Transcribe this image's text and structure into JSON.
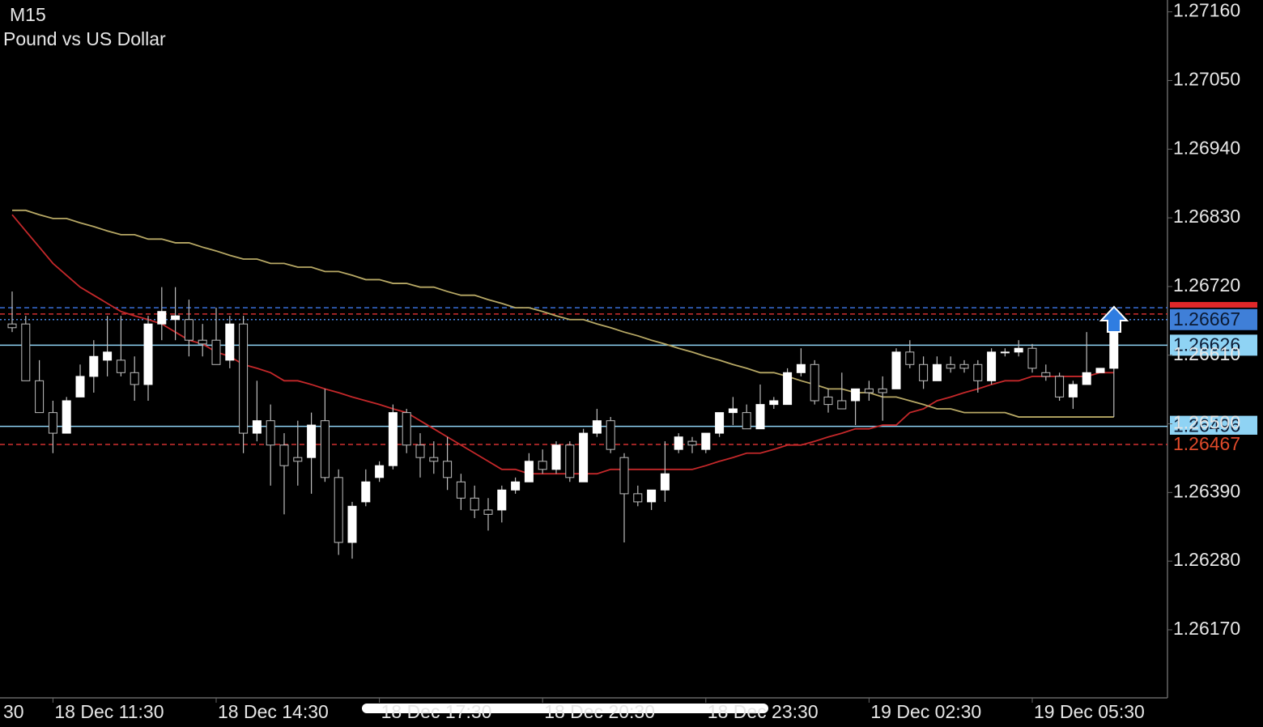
{
  "chart_data": {
    "type": "candlestick",
    "title": "M15",
    "subtitle": "Pound vs US Dollar",
    "x_label_cut": "30",
    "categories": [
      null,
      null,
      null,
      "18 Dec 11:30",
      null,
      null,
      null,
      null,
      null,
      null,
      null,
      null,
      null,
      null,
      null,
      "18 Dec 14:30",
      null,
      null,
      null,
      null,
      null,
      null,
      null,
      null,
      null,
      null,
      null,
      "18 Dec 17:30",
      null,
      null,
      null,
      null,
      null,
      null,
      null,
      null,
      null,
      null,
      null,
      "18 Dec 20:30",
      null,
      null,
      null,
      null,
      null,
      null,
      null,
      null,
      null,
      null,
      null,
      "18 Dec 23:30",
      null,
      null,
      null,
      null,
      null,
      null,
      null,
      null,
      null,
      null,
      null,
      "19 Dec 02:30",
      null,
      null,
      null,
      null,
      null,
      null,
      null,
      null,
      null,
      null,
      null,
      "19 Dec 05:30",
      null,
      null,
      null,
      null,
      null,
      null
    ],
    "open": [
      1.2666,
      1.2666,
      1.26569,
      1.26518,
      1.26485,
      1.26543,
      1.26576,
      1.26602,
      1.26602,
      1.26582,
      1.26563,
      1.2666,
      1.26667,
      1.26667,
      1.26634,
      1.26634,
      1.26602,
      1.2666,
      1.26485,
      1.26505,
      1.26466,
      1.26446,
      1.26446,
      1.26505,
      1.26414,
      1.2631,
      1.26375,
      1.26414,
      1.26433,
      1.26518,
      1.26466,
      1.26446,
      1.2644,
      1.26407,
      1.26381,
      1.26362,
      1.26362,
      1.26394,
      1.26407,
      1.2644,
      1.26427,
      1.26466,
      1.26407,
      1.26485,
      1.26505,
      1.26446,
      1.26388,
      1.26375,
      1.26394,
      1.26459,
      1.26472,
      1.26459,
      1.26485,
      1.26518,
      1.26518,
      1.26492,
      1.26531,
      1.26531,
      1.26582,
      1.26595,
      1.26543,
      1.26537,
      1.26537,
      1.26556,
      1.26556,
      1.26556,
      1.26615,
      1.26595,
      1.26569,
      1.26595,
      1.26595,
      1.26595,
      1.26569,
      1.26615,
      1.26615,
      1.26621,
      1.26582,
      1.26576,
      1.26543,
      1.26563,
      1.26582,
      1.26589
    ],
    "high": [
      1.26712,
      1.26673,
      1.26602,
      1.26537,
      1.26543,
      1.26595,
      1.26634,
      1.26673,
      1.26673,
      1.26608,
      1.26673,
      1.26719,
      1.26719,
      1.26699,
      1.2666,
      1.26686,
      1.26673,
      1.26673,
      1.26569,
      1.26531,
      1.26485,
      1.26505,
      1.26518,
      1.26556,
      1.26427,
      1.26375,
      1.26427,
      1.2644,
      1.26531,
      1.26524,
      1.26485,
      1.26472,
      1.26479,
      1.2642,
      1.26401,
      1.26381,
      1.26401,
      1.26414,
      1.26453,
      1.26459,
      1.26472,
      1.26472,
      1.26492,
      1.26524,
      1.26511,
      1.26453,
      1.26401,
      1.26394,
      1.26472,
      1.26485,
      1.26479,
      1.26485,
      1.26518,
      1.26543,
      1.26531,
      1.26563,
      1.26543,
      1.26589,
      1.26621,
      1.26602,
      1.26556,
      1.26582,
      1.26556,
      1.26569,
      1.26576,
      1.26621,
      1.26634,
      1.26608,
      1.26608,
      1.26608,
      1.26602,
      1.26602,
      1.26621,
      1.26621,
      1.26634,
      1.26628,
      1.26595,
      1.26582,
      1.26569,
      1.26647,
      1.26589,
      1.2666
    ],
    "low": [
      1.26647,
      1.26569,
      1.26518,
      1.26453,
      1.26485,
      1.26543,
      1.2655,
      1.26576,
      1.26576,
      1.26537,
      1.26537,
      1.26634,
      1.26634,
      1.26608,
      1.26608,
      1.26595,
      1.26589,
      1.26453,
      1.26472,
      1.26401,
      1.26355,
      1.26401,
      1.26388,
      1.26407,
      1.2629,
      1.26284,
      1.26368,
      1.26407,
      1.26427,
      1.26453,
      1.26414,
      1.2642,
      1.26394,
      1.26362,
      1.26349,
      1.26329,
      1.26342,
      1.26388,
      1.26407,
      1.2642,
      1.2642,
      1.26407,
      1.26407,
      1.26479,
      1.26453,
      1.2631,
      1.26368,
      1.26362,
      1.26375,
      1.26453,
      1.26453,
      1.26453,
      1.26479,
      1.26498,
      1.26492,
      1.26492,
      1.26524,
      1.26531,
      1.26576,
      1.26531,
      1.26518,
      1.26524,
      1.26498,
      1.26537,
      1.26505,
      1.26556,
      1.26589,
      1.26556,
      1.26569,
      1.26582,
      1.26582,
      1.2655,
      1.26563,
      1.26608,
      1.26608,
      1.26582,
      1.26569,
      1.26537,
      1.26524,
      1.26563,
      1.26582,
      1.26511
    ],
    "close": [
      1.26654,
      1.26569,
      1.26518,
      1.26485,
      1.26537,
      1.26576,
      1.26608,
      1.26615,
      1.26582,
      1.26563,
      1.2666,
      1.2668,
      1.26673,
      1.26634,
      1.26628,
      1.26595,
      1.2666,
      1.26485,
      1.26505,
      1.26466,
      1.26433,
      1.2644,
      1.26498,
      1.26414,
      1.2631,
      1.26368,
      1.26407,
      1.26433,
      1.26518,
      1.26466,
      1.26446,
      1.2644,
      1.26414,
      1.26381,
      1.26362,
      1.26355,
      1.26394,
      1.26407,
      1.2644,
      1.26427,
      1.26466,
      1.26414,
      1.26485,
      1.26505,
      1.26459,
      1.26388,
      1.26375,
      1.26394,
      1.2642,
      1.26479,
      1.26466,
      1.26485,
      1.26518,
      1.26524,
      1.26492,
      1.26531,
      1.26537,
      1.26582,
      1.26595,
      1.26537,
      1.26531,
      1.26524,
      1.26556,
      1.2655,
      1.2655,
      1.26615,
      1.26595,
      1.26569,
      1.26595,
      1.26589,
      1.26589,
      1.26569,
      1.26615,
      1.26615,
      1.26621,
      1.26589,
      1.26576,
      1.26543,
      1.26563,
      1.26582,
      1.26589,
      1.26667
    ],
    "moving_averages": [
      {
        "color": "#c4282a",
        "values": [
          1.26835,
          1.26809,
          1.26783,
          1.26757,
          1.26738,
          1.26719,
          1.26706,
          1.26693,
          1.2668,
          1.26673,
          1.26667,
          1.2666,
          1.26647,
          1.26634,
          1.26628,
          1.26615,
          1.26608,
          1.26595,
          1.26589,
          1.26582,
          1.26569,
          1.26569,
          1.26563,
          1.26556,
          1.2655,
          1.26543,
          1.26537,
          1.26531,
          1.26524,
          1.26518,
          1.26505,
          1.26492,
          1.26479,
          1.26466,
          1.26453,
          1.2644,
          1.26427,
          1.26427,
          1.2642,
          1.2642,
          1.2642,
          1.2642,
          1.2642,
          1.2642,
          1.26427,
          1.26427,
          1.26427,
          1.26427,
          1.26427,
          1.26427,
          1.26427,
          1.26433,
          1.2644,
          1.26446,
          1.26453,
          1.26453,
          1.26459,
          1.26466,
          1.26466,
          1.26472,
          1.26479,
          1.26485,
          1.26492,
          1.26492,
          1.26498,
          1.26498,
          1.26518,
          1.26524,
          1.26537,
          1.26543,
          1.2655,
          1.26556,
          1.26563,
          1.26569,
          1.26569,
          1.26576,
          1.26576,
          1.26576,
          1.26576,
          1.26576,
          1.26582,
          1.26582
        ]
      },
      {
        "color": "#b7a865",
        "values": [
          1.26842,
          1.26842,
          1.26835,
          1.26829,
          1.26829,
          1.26822,
          1.26816,
          1.26809,
          1.26803,
          1.26803,
          1.26796,
          1.26796,
          1.2679,
          1.2679,
          1.26783,
          1.26777,
          1.2677,
          1.26764,
          1.26764,
          1.26757,
          1.26757,
          1.26751,
          1.26751,
          1.26744,
          1.26744,
          1.26738,
          1.26731,
          1.26731,
          1.26725,
          1.26725,
          1.26719,
          1.26719,
          1.26712,
          1.26706,
          1.26706,
          1.26699,
          1.26693,
          1.26686,
          1.26686,
          1.2668,
          1.26673,
          1.26667,
          1.26667,
          1.2666,
          1.26654,
          1.26647,
          1.26641,
          1.26634,
          1.26628,
          1.26621,
          1.26615,
          1.26608,
          1.26602,
          1.26595,
          1.26589,
          1.26582,
          1.26582,
          1.26576,
          1.26569,
          1.26563,
          1.26556,
          1.26556,
          1.2655,
          1.2655,
          1.26543,
          1.26543,
          1.26537,
          1.26531,
          1.26524,
          1.26524,
          1.26518,
          1.26518,
          1.26518,
          1.26518,
          1.26511,
          1.26511,
          1.26511,
          1.26511,
          1.26511,
          1.26511,
          1.26511,
          1.26511
        ]
      }
    ],
    "levels": [
      {
        "value": 1.26686,
        "color": "#3a6fd8",
        "style": "dashed"
      },
      {
        "value": 1.26676,
        "color": "#d03030",
        "style": "dashed"
      },
      {
        "value": 1.26667,
        "color": "#4a86e0",
        "style": "dotted",
        "box": "#3f7fd8",
        "text_color": "#0b1a33"
      },
      {
        "value": 1.26626,
        "color": "#8fd3f4",
        "style": "solid",
        "box": "#8fd3f4",
        "text_color": "#0b1a33"
      },
      {
        "value": 1.26496,
        "color": "#8fd3f4",
        "style": "solid",
        "box": "#8fd3f4",
        "text_color": "#0b1a33"
      },
      {
        "value": 1.26467,
        "color": "#d03030",
        "style": "dashed",
        "text_color": "#e04a2a"
      }
    ],
    "price_marker": {
      "value": 1.2669,
      "color": "#e0282a"
    },
    "ylim": [
      1.26061,
      1.27179
    ],
    "yticks": [
      {
        "value": 1.2716,
        "label": "1.27160"
      },
      {
        "value": 1.2705,
        "label": "1.27050"
      },
      {
        "value": 1.2694,
        "label": "1.26940"
      },
      {
        "value": 1.2683,
        "label": "1.26830"
      },
      {
        "value": 1.2672,
        "label": "1.26720"
      },
      {
        "value": 1.2661,
        "label": "1.26610"
      },
      {
        "value": 1.265,
        "label": "1.26500"
      },
      {
        "value": 1.2639,
        "label": "1.26390"
      },
      {
        "value": 1.2628,
        "label": "1.26280"
      },
      {
        "value": 1.2617,
        "label": "1.26170"
      }
    ],
    "grid": false
  }
}
